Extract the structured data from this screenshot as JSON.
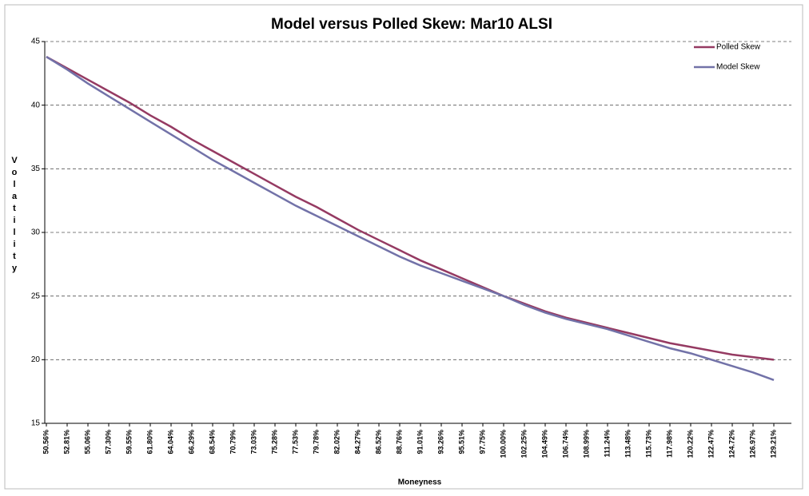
{
  "chart_data": {
    "type": "line",
    "title": "Model versus Polled Skew: Mar10 ALSI",
    "x_label": "Moneyness",
    "y_label": "Volatility",
    "categories": [
      "50.56%",
      "52.81%",
      "55.06%",
      "57.30%",
      "59.55%",
      "61.80%",
      "64.04%",
      "66.29%",
      "68.54%",
      "70.79%",
      "73.03%",
      "75.28%",
      "77.53%",
      "79.78%",
      "82.02%",
      "84.27%",
      "86.52%",
      "88.76%",
      "91.01%",
      "93.26%",
      "95.51%",
      "97.75%",
      "100.00%",
      "102.25%",
      "104.49%",
      "106.74%",
      "108.99%",
      "111.24%",
      "113.48%",
      "115.73%",
      "117.98%",
      "120.22%",
      "122.47%",
      "124.72%",
      "126.97%",
      "129.21%"
    ],
    "series": [
      {
        "name": "Polled Skew",
        "color": "#953a62",
        "values": [
          43.8,
          42.9,
          42.0,
          41.1,
          40.2,
          39.2,
          38.3,
          37.3,
          36.4,
          35.5,
          34.6,
          33.7,
          32.8,
          32.0,
          31.1,
          30.2,
          29.4,
          28.6,
          27.8,
          27.1,
          26.4,
          25.7,
          25.0,
          24.4,
          23.8,
          23.3,
          22.9,
          22.5,
          22.1,
          21.7,
          21.3,
          21.0,
          20.7,
          20.4,
          20.2,
          20.0
        ]
      },
      {
        "name": "Model Skew",
        "color": "#7272a8",
        "values": [
          43.8,
          42.8,
          41.7,
          40.7,
          39.7,
          38.7,
          37.7,
          36.7,
          35.7,
          34.8,
          33.9,
          33.0,
          32.1,
          31.3,
          30.5,
          29.7,
          28.9,
          28.1,
          27.4,
          26.8,
          26.2,
          25.6,
          25.0,
          24.3,
          23.7,
          23.2,
          22.8,
          22.4,
          21.9,
          21.4,
          20.9,
          20.5,
          20.0,
          19.5,
          19.0,
          18.4
        ]
      }
    ],
    "ylim": [
      15,
      45
    ],
    "yticks": [
      15,
      20,
      25,
      30,
      35,
      40,
      45
    ],
    "grid": true,
    "legend": "top-right"
  }
}
